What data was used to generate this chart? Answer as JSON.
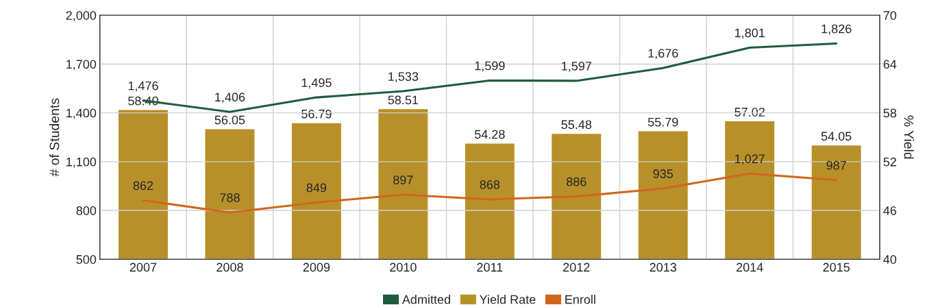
{
  "chart_data": {
    "type": "bar",
    "ylabel": "# of Students",
    "y2label": "% Yield",
    "categories": [
      "2007",
      "2008",
      "2009",
      "2010",
      "2011",
      "2012",
      "2013",
      "2014",
      "2015"
    ],
    "series": [
      {
        "name": "Admitted",
        "type": "line",
        "color": "#1e5c3e",
        "values": [
          1476,
          1406,
          1495,
          1533,
          1599,
          1597,
          1676,
          1801,
          1826
        ],
        "value_labels": [
          "1,476",
          "1,406",
          "1,495",
          "1,533",
          "1,599",
          "1,597",
          "1,676",
          "1,801",
          "1,826"
        ]
      },
      {
        "name": "Yield Rate",
        "axis": "y2",
        "color": "#b8902a",
        "values": [
          58.4,
          56.05,
          56.79,
          58.51,
          54.28,
          55.48,
          55.79,
          57.02,
          54.05
        ],
        "value_labels": [
          "58.40",
          "56.05",
          "56.79",
          "58.51",
          "54.28",
          "55.48",
          "55.79",
          "57.02",
          "54.05"
        ]
      },
      {
        "name": "Enroll",
        "type": "line",
        "color": "#d0661e",
        "values": [
          862,
          788,
          849,
          897,
          868,
          886,
          935,
          1027,
          987
        ],
        "value_labels": [
          "862",
          "788",
          "849",
          "897",
          "868",
          "886",
          "935",
          "1,027",
          "987"
        ]
      }
    ],
    "ylim": [
      500,
      2000
    ],
    "yticks": [
      {
        "value": 500,
        "label": "500"
      },
      {
        "value": 800,
        "label": "800"
      },
      {
        "value": 1100,
        "label": "1,100"
      },
      {
        "value": 1400,
        "label": "1,400"
      },
      {
        "value": 1700,
        "label": "1,700"
      },
      {
        "value": 2000,
        "label": "2,000"
      }
    ],
    "y2lim": [
      40,
      70
    ],
    "y2ticks": [
      40,
      46,
      52,
      58,
      64,
      70
    ],
    "data_labels": true,
    "grid": true,
    "legend": "bottom"
  }
}
